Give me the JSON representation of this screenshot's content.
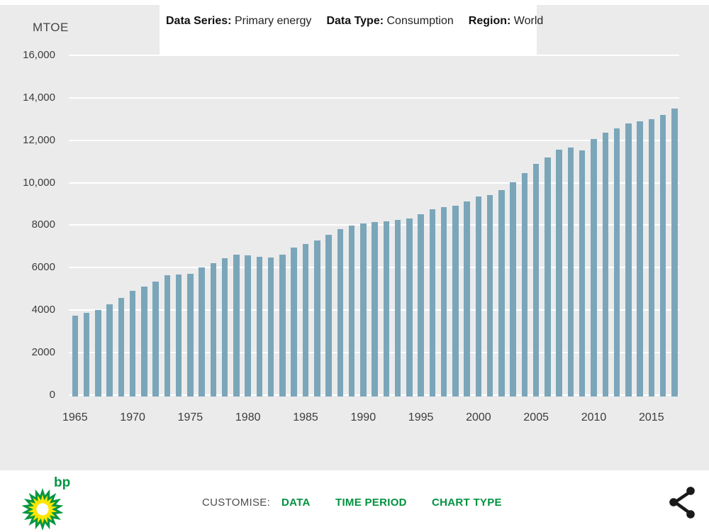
{
  "header": {
    "unit_label": "MTOE",
    "meta": [
      {
        "label": "Data Series:",
        "value": "Primary energy"
      },
      {
        "label": "Data Type:",
        "value": "Consumption"
      },
      {
        "label": "Region:",
        "value": "World"
      }
    ]
  },
  "chart_data": {
    "type": "bar",
    "title": "",
    "ylabel": "MTOE",
    "xlabel": "",
    "ylim": [
      0,
      16000
    ],
    "ytick_step": 2000,
    "grid": true,
    "legend": false,
    "bar_color": "#7ba6ba",
    "ytick_labels": [
      "0",
      "2000",
      "4000",
      "6000",
      "8000",
      "10,000",
      "12,000",
      "14,000",
      "16,000"
    ],
    "xtick_labels": [
      "1965",
      "1970",
      "1975",
      "1980",
      "1985",
      "1990",
      "1995",
      "2000",
      "2005",
      "2010",
      "2015"
    ],
    "categories": [
      1965,
      1966,
      1967,
      1968,
      1969,
      1970,
      1971,
      1972,
      1973,
      1974,
      1975,
      1976,
      1977,
      1978,
      1979,
      1980,
      1981,
      1982,
      1983,
      1984,
      1985,
      1986,
      1987,
      1988,
      1989,
      1990,
      1991,
      1992,
      1993,
      1994,
      1995,
      1996,
      1997,
      1998,
      1999,
      2000,
      2001,
      2002,
      2003,
      2004,
      2005,
      2006,
      2007,
      2008,
      2009,
      2010,
      2011,
      2012,
      2013,
      2014,
      2015,
      2016,
      2017
    ],
    "values": [
      3730,
      3870,
      4000,
      4280,
      4570,
      4900,
      5100,
      5333,
      5629,
      5658,
      5691,
      6008,
      6202,
      6427,
      6625,
      6575,
      6515,
      6492,
      6615,
      6940,
      7120,
      7280,
      7530,
      7830,
      7990,
      8090,
      8150,
      8175,
      8255,
      8330,
      8520,
      8760,
      8845,
      8925,
      9125,
      9370,
      9435,
      9660,
      10010,
      10465,
      10880,
      11210,
      11570,
      11670,
      11525,
      12070,
      12360,
      12560,
      12810,
      12895,
      12995,
      13195,
      13510
    ]
  },
  "footer": {
    "logo_name": "bp-helios-logo",
    "logo_text": "bp",
    "customise_label": "CUSTOMISE:",
    "links": [
      "DATA",
      "TIME PERIOD",
      "CHART TYPE"
    ],
    "link_positions": [
      397,
      473,
      609
    ],
    "accent_green": "#00923f",
    "logo_green": "#009641",
    "logo_yellow": "#ffe600",
    "share_icon": "share-icon"
  }
}
